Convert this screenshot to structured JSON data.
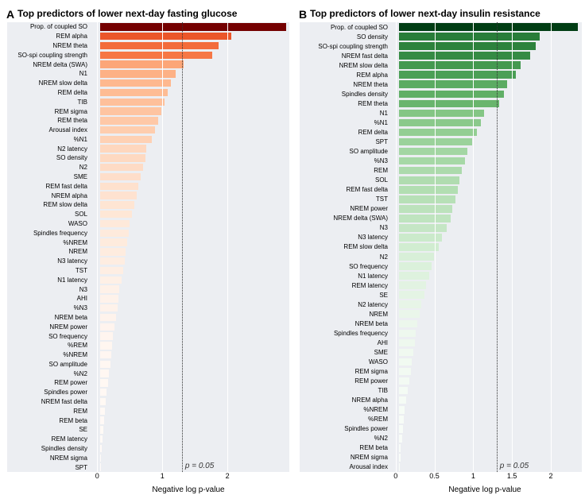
{
  "panels": [
    {
      "tag": "A",
      "title": "Top predictors of lower next-day fasting glucose",
      "xlabel": "Negative log p-value",
      "xlim": [
        -0.15,
        2.95
      ],
      "xticks": [
        0,
        1,
        2
      ],
      "threshold": 1.301,
      "pval_label": "p = 0.05",
      "label_width": 102,
      "bg": "#eceef2",
      "grid_color": "#ffffff",
      "color_ramp": [
        "#740000",
        "#8a0602",
        "#a81106",
        "#c1260e",
        "#d63a19",
        "#e54b23",
        "#ef5e30",
        "#f46e3d",
        "#f77f4c",
        "#fa8f5c",
        "#fc9f6f",
        "#fdae82",
        "#feba92",
        "#fec7a5",
        "#fed4b9",
        "#fee0cc",
        "#fee9da",
        "#fef1e8",
        "#fff7f2",
        "#fffbf8"
      ],
      "bars": [
        {
          "label": "Prop. of coupled SO",
          "value": 2.9
        },
        {
          "label": "REM alpha",
          "value": 2.05
        },
        {
          "label": "NREM theta",
          "value": 1.85
        },
        {
          "label": "SO-spi coupling strength",
          "value": 1.75
        },
        {
          "label": "NREM delta (SWA)",
          "value": 1.3
        },
        {
          "label": "N1",
          "value": 1.18
        },
        {
          "label": "NREM slow delta",
          "value": 1.1
        },
        {
          "label": "REM delta",
          "value": 1.05
        },
        {
          "label": "TIB",
          "value": 1.0
        },
        {
          "label": "REM sigma",
          "value": 0.95
        },
        {
          "label": "REM theta",
          "value": 0.9
        },
        {
          "label": "Arousal index",
          "value": 0.85
        },
        {
          "label": "%N1",
          "value": 0.8
        },
        {
          "label": "N2 latency",
          "value": 0.72
        },
        {
          "label": "SO density",
          "value": 0.7
        },
        {
          "label": "N2",
          "value": 0.67
        },
        {
          "label": "SME",
          "value": 0.63
        },
        {
          "label": "REM fast delta",
          "value": 0.6
        },
        {
          "label": "NREM alpha",
          "value": 0.57
        },
        {
          "label": "REM slow delta",
          "value": 0.53
        },
        {
          "label": "SOL",
          "value": 0.5
        },
        {
          "label": "WASO",
          "value": 0.46
        },
        {
          "label": "Spindles frequency",
          "value": 0.44
        },
        {
          "label": "%NREM",
          "value": 0.42
        },
        {
          "label": "NREM",
          "value": 0.4
        },
        {
          "label": "N3 latency",
          "value": 0.38
        },
        {
          "label": "TST",
          "value": 0.36
        },
        {
          "label": "N1 latency",
          "value": 0.33
        },
        {
          "label": "N3",
          "value": 0.3
        },
        {
          "label": "AHI",
          "value": 0.28
        },
        {
          "label": "%N3",
          "value": 0.27
        },
        {
          "label": "NREM beta",
          "value": 0.25
        },
        {
          "label": "NREM power",
          "value": 0.22
        },
        {
          "label": "SO frequency",
          "value": 0.2
        },
        {
          "label": "%REM",
          "value": 0.18
        },
        {
          "label": "%NREM",
          "value": 0.17
        },
        {
          "label": "SO amplitude",
          "value": 0.16
        },
        {
          "label": "%N2",
          "value": 0.14
        },
        {
          "label": "REM power",
          "value": 0.12
        },
        {
          "label": "Spindles power",
          "value": 0.1
        },
        {
          "label": "NREM fast delta",
          "value": 0.09
        },
        {
          "label": "REM",
          "value": 0.07
        },
        {
          "label": "REM beta",
          "value": 0.06
        },
        {
          "label": "SE",
          "value": 0.05
        },
        {
          "label": "REM latency",
          "value": 0.03
        },
        {
          "label": "Spindles density",
          "value": 0.02
        },
        {
          "label": "NREM sigma",
          "value": 0.005
        },
        {
          "label": "SPT",
          "value": 0.002
        }
      ]
    },
    {
      "tag": "B",
      "title": "Top predictors of lower next-day insulin resistance",
      "xlabel": "Negative log p-value",
      "xlim": [
        -0.1,
        2.4
      ],
      "xticks": [
        0,
        0.5,
        1.0,
        1.5,
        2.0
      ],
      "threshold": 1.301,
      "pval_label": "p = 0.05",
      "label_width": 112,
      "bg": "#eceef2",
      "grid_color": "#ffffff",
      "color_ramp": [
        "#003d14",
        "#0a4f1d",
        "#145f26",
        "#1e6e2f",
        "#287c39",
        "#348a43",
        "#43984f",
        "#52a55b",
        "#63b168",
        "#74bd77",
        "#85c786",
        "#97d097",
        "#a7d8a7",
        "#b7e0b7",
        "#c6e7c6",
        "#d4eed4",
        "#e1f3e1",
        "#ecf7ec",
        "#f4fbf4",
        "#fafdfa"
      ],
      "bars": [
        {
          "label": "Prop. of coupled SO",
          "value": 2.35
        },
        {
          "label": "SO density",
          "value": 1.85
        },
        {
          "label": "SO-spi coupling strength",
          "value": 1.8
        },
        {
          "label": "NREM fast delta",
          "value": 1.72
        },
        {
          "label": "NREM slow delta",
          "value": 1.6
        },
        {
          "label": "REM alpha",
          "value": 1.54
        },
        {
          "label": "NREM theta",
          "value": 1.42
        },
        {
          "label": "Spindles density",
          "value": 1.38
        },
        {
          "label": "REM theta",
          "value": 1.32
        },
        {
          "label": "N1",
          "value": 1.12
        },
        {
          "label": "%N1",
          "value": 1.08
        },
        {
          "label": "REM delta",
          "value": 1.02
        },
        {
          "label": "SPT",
          "value": 0.96
        },
        {
          "label": "SO amplitude",
          "value": 0.9
        },
        {
          "label": "%N3",
          "value": 0.87
        },
        {
          "label": "REM",
          "value": 0.83
        },
        {
          "label": "SOL",
          "value": 0.8
        },
        {
          "label": "REM fast delta",
          "value": 0.78
        },
        {
          "label": "TST",
          "value": 0.74
        },
        {
          "label": "NREM power",
          "value": 0.7
        },
        {
          "label": "NREM delta (SWA)",
          "value": 0.68
        },
        {
          "label": "N3",
          "value": 0.63
        },
        {
          "label": "N3 latency",
          "value": 0.57
        },
        {
          "label": "REM slow delta",
          "value": 0.52
        },
        {
          "label": "N2",
          "value": 0.46
        },
        {
          "label": "SO frequency",
          "value": 0.43
        },
        {
          "label": "N1 latency",
          "value": 0.4
        },
        {
          "label": "REM latency",
          "value": 0.36
        },
        {
          "label": "SE",
          "value": 0.34
        },
        {
          "label": "N2 latency",
          "value": 0.3
        },
        {
          "label": "NREM",
          "value": 0.27
        },
        {
          "label": "NREM beta",
          "value": 0.24
        },
        {
          "label": "Spindles frequency",
          "value": 0.22
        },
        {
          "label": "AHI",
          "value": 0.21
        },
        {
          "label": "SME",
          "value": 0.19
        },
        {
          "label": "WASO",
          "value": 0.17
        },
        {
          "label": "REM sigma",
          "value": 0.16
        },
        {
          "label": "REM power",
          "value": 0.14
        },
        {
          "label": "TIB",
          "value": 0.12
        },
        {
          "label": "NREM alpha",
          "value": 0.1
        },
        {
          "label": "%NREM",
          "value": 0.08
        },
        {
          "label": "%REM",
          "value": 0.07
        },
        {
          "label": "Spindles power",
          "value": 0.06
        },
        {
          "label": "%N2",
          "value": 0.05
        },
        {
          "label": "REM beta",
          "value": 0.03
        },
        {
          "label": "NREM sigma",
          "value": 0.02
        },
        {
          "label": "Arousal index",
          "value": 0.002
        }
      ]
    }
  ]
}
